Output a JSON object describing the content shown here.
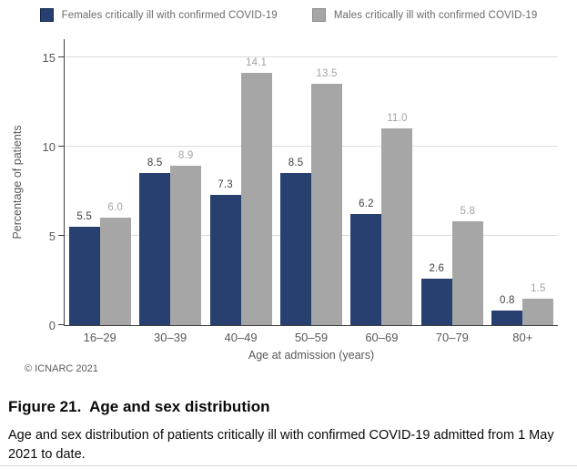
{
  "legend": {
    "items": [
      {
        "label": "Females critically ill with confirmed COVID-19",
        "color": "#27406F"
      },
      {
        "label": "Males critically ill with confirmed COVID-19",
        "color": "#A6A6A6"
      }
    ]
  },
  "chart_data": {
    "type": "bar",
    "categories": [
      "16–29",
      "30–39",
      "40–49",
      "50–59",
      "60–69",
      "70–79",
      "80+"
    ],
    "series": [
      {
        "name": "Females critically ill with confirmed COVID-19",
        "color": "#27406F",
        "label_color": "#3F3F3F",
        "values": [
          5.5,
          8.5,
          7.3,
          8.5,
          6.2,
          2.6,
          0.8
        ]
      },
      {
        "name": "Males critically ill with confirmed COVID-19",
        "color": "#A6A6A6",
        "label_color": "#A3A3A3",
        "values": [
          6.0,
          8.9,
          14.1,
          13.5,
          11.0,
          5.8,
          1.5
        ]
      }
    ],
    "xlabel": "Age at admission (years)",
    "ylabel": "Percentage of patients",
    "ylim": [
      0,
      16
    ],
    "yticks": [
      0,
      5,
      10,
      15
    ],
    "grid": true,
    "legend_position": "top",
    "value_labels": true
  },
  "footer": {
    "copyright": "© ICNARC 2021"
  },
  "caption": {
    "title": "Figure 21.  Age and sex distribution",
    "body": "Age and sex distribution of patients critically ill with confirmed COVID-19 admitted from 1 May 2021 to date."
  }
}
